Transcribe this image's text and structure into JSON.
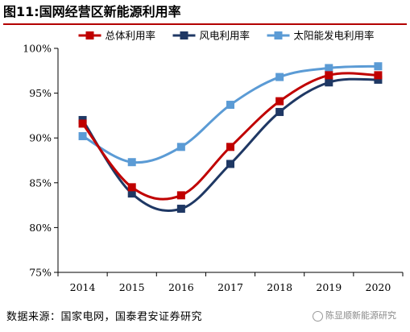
{
  "figure_title": "图11:国网经营区新能源利用率",
  "source": "数据来源：国家电网，国泰君安证券研究",
  "watermark": "陈显顺新能源研究",
  "colors": {
    "overall": "#c00000",
    "wind": "#1f3864",
    "solar": "#5b9bd5",
    "title_rule": "#b30000"
  },
  "chart_data": {
    "type": "line",
    "title": "",
    "xlabel": "",
    "ylabel": "",
    "categories": [
      "2014",
      "2015",
      "2016",
      "2017",
      "2018",
      "2019",
      "2020"
    ],
    "ylim": [
      75,
      100
    ],
    "yticks": [
      75,
      80,
      85,
      90,
      95,
      100
    ],
    "ytick_labels": [
      "75%",
      "80%",
      "85%",
      "90%",
      "95%",
      "100%"
    ],
    "grid": false,
    "legend_position": "top",
    "series": [
      {
        "name": "总体利用率",
        "color": "#c00000",
        "marker": "square",
        "values": [
          91.6,
          84.5,
          83.6,
          89.0,
          94.1,
          97.0,
          97.0
        ]
      },
      {
        "name": "风电利用率",
        "color": "#1f3864",
        "marker": "square",
        "values": [
          92.0,
          83.8,
          82.1,
          87.1,
          92.9,
          96.2,
          96.5
        ]
      },
      {
        "name": "太阳能发电利用率",
        "color": "#5b9bd5",
        "marker": "square",
        "values": [
          90.2,
          87.3,
          89.0,
          93.7,
          96.8,
          97.8,
          98.0
        ]
      }
    ]
  }
}
